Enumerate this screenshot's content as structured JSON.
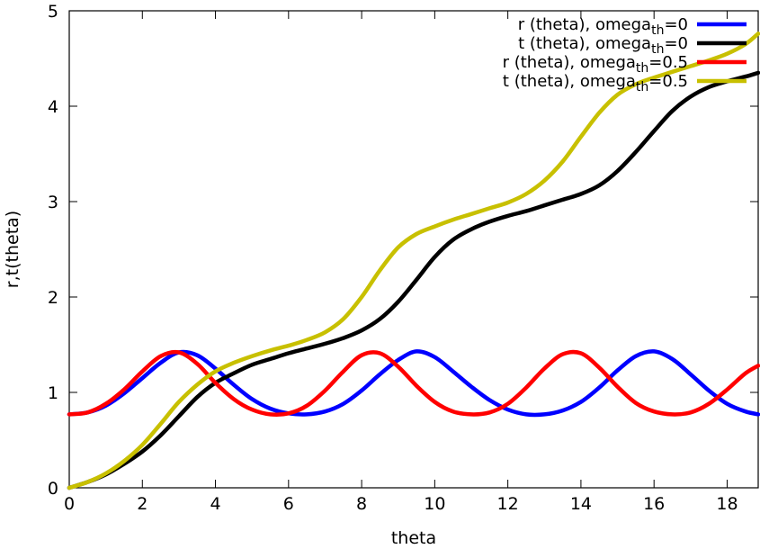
{
  "chart_data": {
    "type": "line",
    "xlabel": "theta",
    "ylabel": "r,t(theta)",
    "xlim": [
      0,
      18.85
    ],
    "ylim": [
      0,
      5
    ],
    "x_ticks": [
      "0",
      "2",
      "4",
      "6",
      "8",
      "10",
      "12",
      "14",
      "16",
      "18"
    ],
    "y_ticks": [
      "0",
      "1",
      "2",
      "3",
      "4",
      "5"
    ],
    "grid": false,
    "legend_position": "top-right",
    "series": [
      {
        "name": "r (theta), omega",
        "name_sub": "th",
        "name_suffix": "=0",
        "color": "#0000ff",
        "x": [
          0,
          0.5,
          1,
          1.5,
          2,
          2.5,
          3,
          3.5,
          4,
          4.5,
          5,
          5.5,
          6,
          6.5,
          7,
          7.5,
          8,
          8.5,
          9,
          9.5,
          10,
          10.5,
          11,
          11.5,
          12,
          12.5,
          13,
          13.5,
          14,
          14.5,
          15,
          15.5,
          16,
          16.5,
          17,
          17.5,
          18,
          18.5,
          18.85
        ],
        "y": [
          0.77,
          0.79,
          0.86,
          0.99,
          1.15,
          1.31,
          1.42,
          1.39,
          1.25,
          1.08,
          0.93,
          0.83,
          0.78,
          0.77,
          0.8,
          0.88,
          1.02,
          1.19,
          1.34,
          1.43,
          1.37,
          1.22,
          1.06,
          0.92,
          0.82,
          0.77,
          0.77,
          0.81,
          0.9,
          1.05,
          1.23,
          1.38,
          1.43,
          1.35,
          1.19,
          1.02,
          0.88,
          0.8,
          0.77
        ]
      },
      {
        "name": "t (theta), omega",
        "name_sub": "th",
        "name_suffix": "=0",
        "color": "#000000",
        "x": [
          0,
          0.5,
          1,
          1.5,
          2,
          2.5,
          3,
          3.5,
          4,
          4.5,
          5,
          5.5,
          6,
          6.5,
          7,
          7.5,
          8,
          8.5,
          9,
          9.5,
          10,
          10.5,
          11,
          11.5,
          12,
          12.5,
          13,
          13.5,
          14,
          14.5,
          15,
          15.5,
          16,
          16.5,
          17,
          17.5,
          18,
          18.5,
          18.85
        ],
        "y": [
          0,
          0.06,
          0.14,
          0.25,
          0.38,
          0.55,
          0.75,
          0.95,
          1.1,
          1.2,
          1.29,
          1.35,
          1.41,
          1.46,
          1.51,
          1.57,
          1.65,
          1.77,
          1.95,
          2.18,
          2.42,
          2.6,
          2.71,
          2.79,
          2.85,
          2.9,
          2.96,
          3.02,
          3.08,
          3.17,
          3.32,
          3.52,
          3.74,
          3.95,
          4.1,
          4.2,
          4.26,
          4.31,
          4.35
        ]
      },
      {
        "name": "r (theta), omega",
        "name_sub": "th",
        "name_suffix": "=0.5",
        "color": "#ff0000",
        "x": [
          0,
          0.5,
          1,
          1.5,
          2,
          2.5,
          3,
          3.5,
          4,
          4.5,
          5,
          5.5,
          6,
          6.5,
          7,
          7.5,
          8,
          8.5,
          9,
          9.5,
          10,
          10.5,
          11,
          11.5,
          12,
          12.5,
          13,
          13.5,
          14,
          14.5,
          15,
          15.5,
          16,
          16.5,
          17,
          17.5,
          18,
          18.5,
          18.85
        ],
        "y": [
          0.77,
          0.79,
          0.88,
          1.03,
          1.22,
          1.38,
          1.42,
          1.3,
          1.1,
          0.93,
          0.82,
          0.77,
          0.78,
          0.86,
          1.02,
          1.22,
          1.39,
          1.41,
          1.27,
          1.07,
          0.9,
          0.8,
          0.77,
          0.79,
          0.88,
          1.05,
          1.25,
          1.4,
          1.41,
          1.26,
          1.06,
          0.89,
          0.8,
          0.77,
          0.79,
          0.88,
          1.03,
          1.2,
          1.28
        ]
      },
      {
        "name": "t (theta), omega",
        "name_sub": "th",
        "name_suffix": "=0.5",
        "color": "#c8c000",
        "x": [
          0,
          0.5,
          1,
          1.5,
          2,
          2.5,
          3,
          3.5,
          4,
          4.5,
          5,
          5.5,
          6,
          6.5,
          7,
          7.5,
          8,
          8.5,
          9,
          9.5,
          10,
          10.5,
          11,
          11.5,
          12,
          12.5,
          13,
          13.5,
          14,
          14.5,
          15,
          15.5,
          16,
          16.5,
          17,
          17.5,
          18,
          18.5,
          18.85
        ],
        "y": [
          0,
          0.06,
          0.15,
          0.28,
          0.45,
          0.67,
          0.9,
          1.08,
          1.22,
          1.31,
          1.38,
          1.44,
          1.49,
          1.55,
          1.63,
          1.77,
          2.0,
          2.28,
          2.52,
          2.66,
          2.74,
          2.81,
          2.87,
          2.93,
          2.99,
          3.08,
          3.22,
          3.42,
          3.68,
          3.93,
          4.12,
          4.23,
          4.3,
          4.36,
          4.42,
          4.48,
          4.55,
          4.65,
          4.76
        ]
      }
    ]
  }
}
